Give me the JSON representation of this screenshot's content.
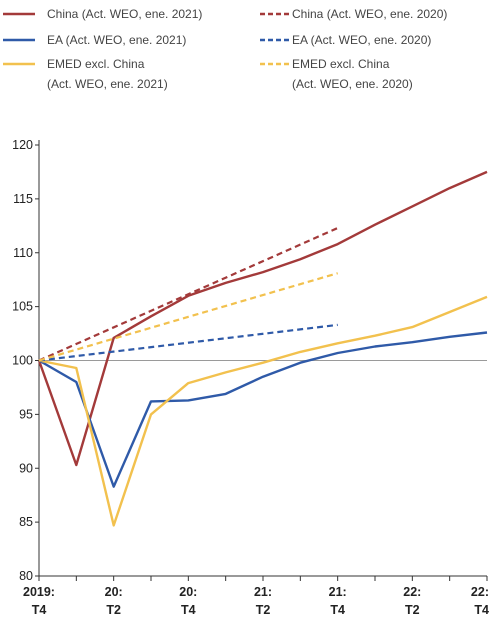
{
  "chart_data": {
    "type": "line",
    "title": "",
    "xlabel": "",
    "ylabel": "",
    "ylim": [
      80,
      120
    ],
    "yticks": [
      80,
      85,
      90,
      95,
      100,
      105,
      110,
      115,
      120
    ],
    "x_tick_labels": [
      {
        "x": 0,
        "top": "2019:",
        "bottom": "T4"
      },
      {
        "x": 2,
        "top": "20:",
        "bottom": "T2"
      },
      {
        "x": 4,
        "top": "20:",
        "bottom": "T4"
      },
      {
        "x": 6,
        "top": "21:",
        "bottom": "T2"
      },
      {
        "x": 8,
        "top": "21:",
        "bottom": "T4"
      },
      {
        "x": 10,
        "top": "22:",
        "bottom": "T2"
      },
      {
        "x": 12,
        "top": "22:",
        "bottom": "T4"
      }
    ],
    "xlim": [
      0,
      12
    ],
    "reference_line": 100,
    "grid": false,
    "legend_position": "top",
    "series": [
      {
        "name": "China (Act. WEO, ene. 2021)",
        "color": "#a33a3a",
        "dash": "solid",
        "x": [
          0,
          1,
          2,
          3,
          4,
          5,
          6,
          7,
          8,
          9,
          10,
          11,
          12
        ],
        "values": [
          100,
          90.3,
          102.1,
          104.1,
          106.0,
          107.2,
          108.2,
          109.4,
          110.8,
          112.6,
          114.3,
          116.0,
          117.5
        ]
      },
      {
        "name": "EA (Act. WEO, ene. 2021)",
        "color": "#2f5aa8",
        "dash": "solid",
        "x": [
          0,
          1,
          2,
          3,
          4,
          5,
          6,
          7,
          8,
          9,
          10,
          11,
          12
        ],
        "values": [
          100,
          98.0,
          88.3,
          96.2,
          96.3,
          96.9,
          98.5,
          99.8,
          100.7,
          101.3,
          101.7,
          102.2,
          102.6
        ]
      },
      {
        "name": "EMED excl. China (Act. WEO, ene. 2021)",
        "color": "#f2c14e",
        "dash": "solid",
        "x": [
          0,
          1,
          2,
          3,
          4,
          5,
          6,
          7,
          8,
          9,
          10,
          11,
          12
        ],
        "values": [
          100,
          99.3,
          84.7,
          95.0,
          97.9,
          98.9,
          99.8,
          100.8,
          101.6,
          102.3,
          103.1,
          104.5,
          105.9
        ]
      },
      {
        "name": "China (Act. WEO, ene. 2020)",
        "color": "#a33a3a",
        "dash": "dashed",
        "x": [
          0,
          8
        ],
        "values": [
          100,
          112.3
        ]
      },
      {
        "name": "EA (Act. WEO, ene. 2020)",
        "color": "#2f5aa8",
        "dash": "dashed",
        "x": [
          0,
          8
        ],
        "values": [
          100,
          103.3
        ]
      },
      {
        "name": "EMED excl. China (Act. WEO, ene. 2020)",
        "color": "#f2c14e",
        "dash": "dashed",
        "x": [
          0,
          8
        ],
        "values": [
          100,
          108.1
        ]
      }
    ],
    "legend": [
      {
        "lines": [
          "China (Act. WEO, ene. 2021)"
        ],
        "color": "#a33a3a",
        "dash": "solid"
      },
      {
        "lines": [
          "EA (Act. WEO, ene. 2021)"
        ],
        "color": "#2f5aa8",
        "dash": "solid"
      },
      {
        "lines": [
          "EMED excl. China",
          "(Act. WEO, ene. 2021)"
        ],
        "color": "#f2c14e",
        "dash": "solid"
      },
      {
        "lines": [
          "China (Act. WEO, ene. 2020)"
        ],
        "color": "#a33a3a",
        "dash": "dashed"
      },
      {
        "lines": [
          "EA (Act. WEO, ene. 2020)"
        ],
        "color": "#2f5aa8",
        "dash": "dashed"
      },
      {
        "lines": [
          "EMED excl. China",
          "(Act. WEO, ene. 2020)"
        ],
        "color": "#f2c14e",
        "dash": "dashed"
      }
    ]
  }
}
